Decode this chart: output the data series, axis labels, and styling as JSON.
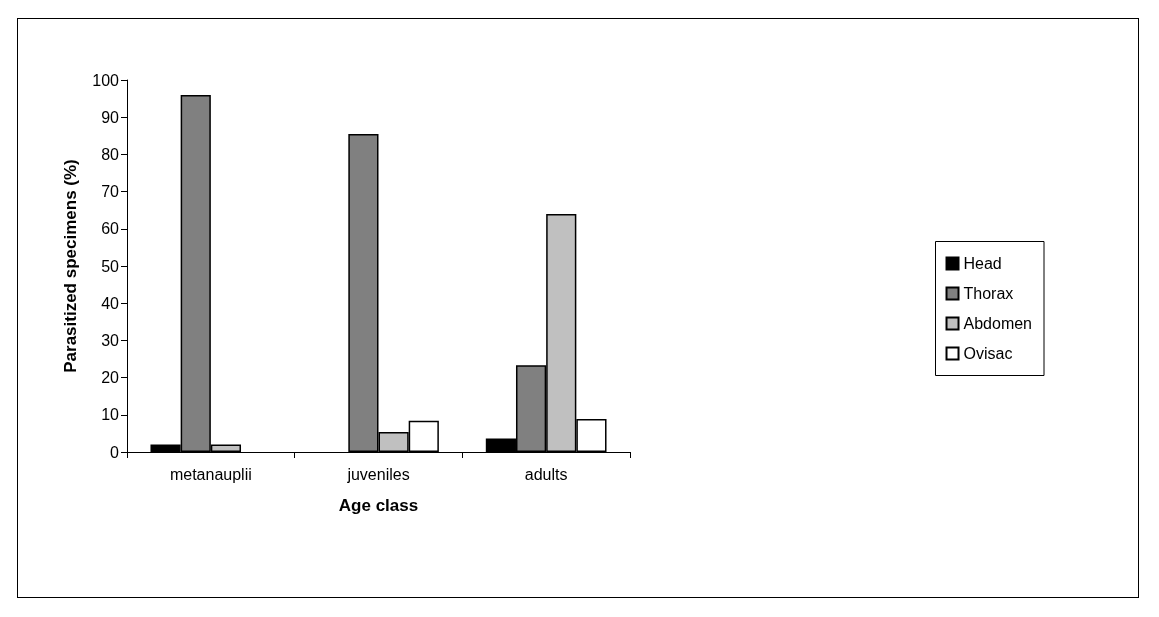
{
  "chart_data": {
    "type": "bar",
    "xlabel": "Age class",
    "ylabel": "Parasitized specimens (%)",
    "categories": [
      "metanauplii",
      "juveniles",
      "adults"
    ],
    "series": [
      {
        "name": "Head",
        "color": "#000000",
        "values": [
          2.0,
          0,
          3.6
        ]
      },
      {
        "name": "Thorax",
        "color": "#808080",
        "values": [
          96,
          85.5,
          23.3
        ]
      },
      {
        "name": "Abdomen",
        "color": "#c0c0c0",
        "values": [
          2.0,
          5.4,
          64
        ]
      },
      {
        "name": "Ovisac",
        "color": "#ffffff",
        "values": [
          0,
          8.4,
          8.9
        ]
      }
    ],
    "ylim": [
      0,
      100
    ],
    "yticks": [
      0,
      10,
      20,
      30,
      40,
      50,
      60,
      70,
      80,
      90,
      100
    ],
    "grid": false,
    "legend": "right"
  }
}
